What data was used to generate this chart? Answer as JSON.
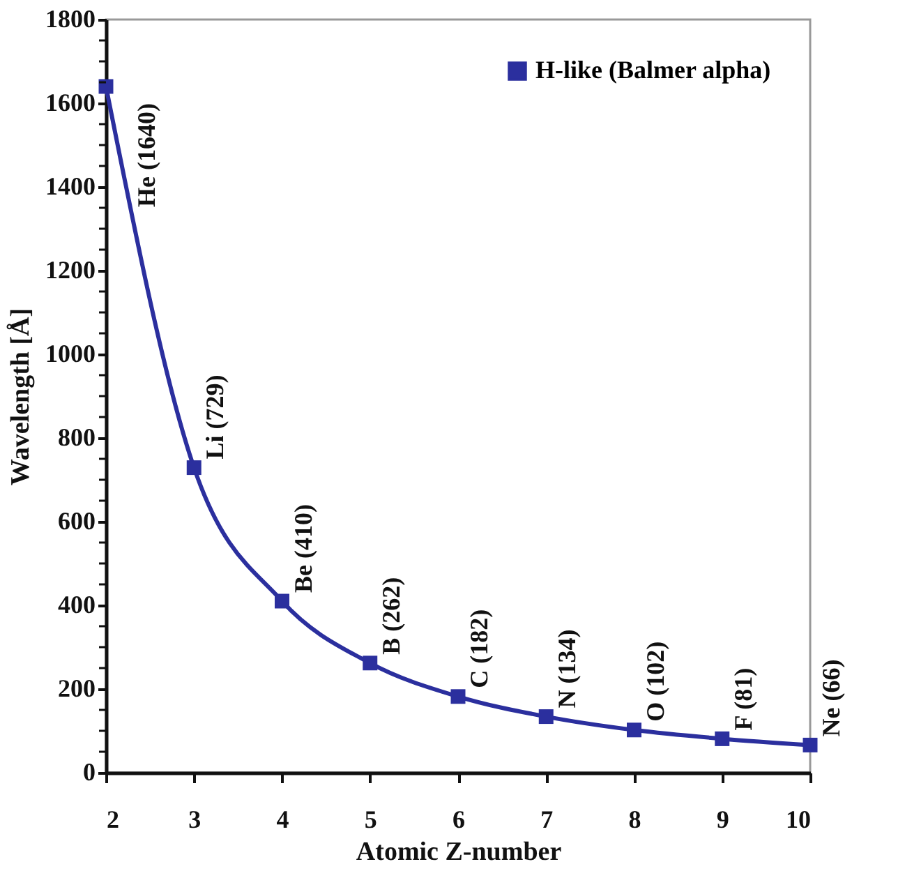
{
  "chart_data": {
    "type": "line",
    "xlabel": "Atomic Z-number",
    "ylabel": "Wavelength [Å]",
    "x": [
      2,
      3,
      4,
      5,
      6,
      7,
      8,
      9,
      10
    ],
    "series": [
      {
        "name": "H-like (Balmer alpha)",
        "color": "#2b2f9e",
        "values": [
          1640,
          729,
          410,
          262,
          182,
          134,
          102,
          81,
          66
        ],
        "value_labels": [
          "He (1640)",
          "Li (729)",
          "Be (410)",
          "B (262)",
          "C (182)",
          "N (134)",
          "O (102)",
          "F (81)",
          "Ne (66)"
        ]
      }
    ],
    "xlim": [
      2,
      10
    ],
    "xticks": [
      2,
      3,
      4,
      5,
      6,
      7,
      8,
      9,
      10
    ],
    "ylim": [
      0,
      1800
    ],
    "yticks": [
      0,
      {
        "value": 50,
        "label": null
      },
      {
        "value": 100,
        "label": null
      },
      {
        "value": 150,
        "label": null
      },
      200,
      {
        "value": 250,
        "label": null
      },
      {
        "value": 300,
        "label": null
      },
      {
        "value": 350,
        "label": null
      },
      400,
      {
        "value": 450,
        "label": null
      },
      {
        "value": 500,
        "label": null
      },
      {
        "value": 550,
        "label": null
      },
      600,
      {
        "value": 650,
        "label": null
      },
      {
        "value": 700,
        "label": null
      },
      {
        "value": 750,
        "label": null
      },
      800,
      {
        "value": 850,
        "label": null
      },
      {
        "value": 900,
        "label": null
      },
      {
        "value": 950,
        "label": null
      },
      1000,
      {
        "value": 1050,
        "label": null
      },
      {
        "value": 1100,
        "label": null
      },
      {
        "value": 1150,
        "label": null
      },
      1200,
      {
        "value": 1250,
        "label": null
      },
      {
        "value": 1300,
        "label": null
      },
      {
        "value": 1350,
        "label": null
      },
      1400,
      {
        "value": 1450,
        "label": null
      },
      {
        "value": 1500,
        "label": null
      },
      {
        "value": 1550,
        "label": null
      },
      1600,
      {
        "value": 1650,
        "label": null
      },
      {
        "value": 1700,
        "label": null
      },
      {
        "value": 1750,
        "label": null
      },
      1800
    ],
    "marker": "square",
    "line_style": "solid",
    "legend": "top right",
    "grid": false
  }
}
